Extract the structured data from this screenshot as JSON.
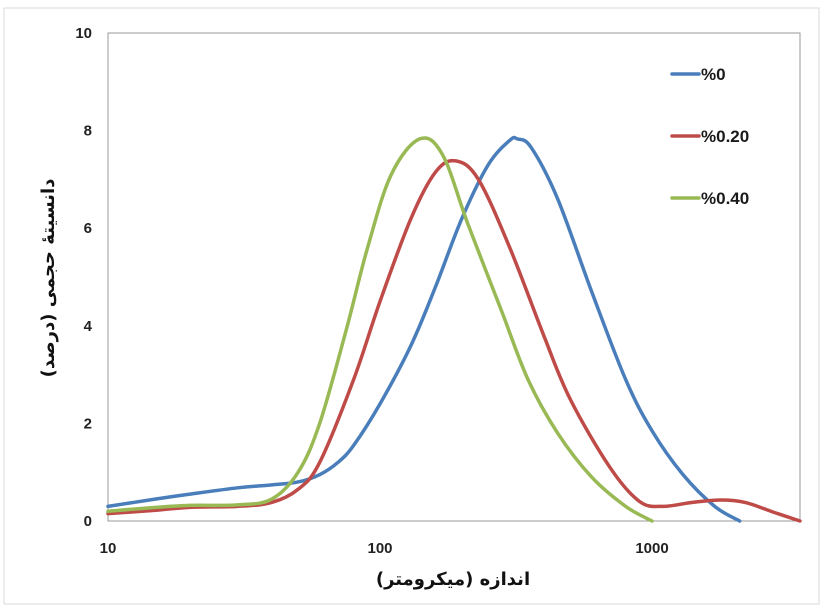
{
  "chart_data": {
    "type": "line",
    "xlabel": "اندازه (میکرومتر)",
    "ylabel": "دانسیتهٔ حجمی (درصد)",
    "xscale": "log",
    "xlim": [
      10,
      3500
    ],
    "ylim": [
      0,
      10
    ],
    "xticks": [
      10,
      100,
      1000
    ],
    "xtick_labels": [
      "10",
      "100",
      "1000"
    ],
    "yticks": [
      0,
      2,
      4,
      6,
      8,
      10
    ],
    "ytick_labels": [
      "0",
      "2",
      "4",
      "6",
      "8",
      "10"
    ],
    "grid": false,
    "legend_position": "top-right",
    "series": [
      {
        "name": "%0",
        "color": "#4a7ebb",
        "points": [
          [
            10,
            0.3
          ],
          [
            15,
            0.45
          ],
          [
            20,
            0.55
          ],
          [
            30,
            0.68
          ],
          [
            40,
            0.74
          ],
          [
            50,
            0.8
          ],
          [
            60,
            0.95
          ],
          [
            70,
            1.2
          ],
          [
            80,
            1.55
          ],
          [
            100,
            2.4
          ],
          [
            130,
            3.6
          ],
          [
            160,
            4.8
          ],
          [
            200,
            6.2
          ],
          [
            250,
            7.3
          ],
          [
            300,
            7.8
          ],
          [
            320,
            7.83
          ],
          [
            360,
            7.65
          ],
          [
            450,
            6.6
          ],
          [
            600,
            4.7
          ],
          [
            800,
            2.9
          ],
          [
            1000,
            1.85
          ],
          [
            1300,
            0.95
          ],
          [
            1700,
            0.3
          ],
          [
            2100,
            0.0
          ]
        ]
      },
      {
        "name": "%0.20",
        "color": "#be4b48",
        "points": [
          [
            10,
            0.15
          ],
          [
            15,
            0.22
          ],
          [
            20,
            0.28
          ],
          [
            30,
            0.3
          ],
          [
            40,
            0.38
          ],
          [
            50,
            0.65
          ],
          [
            60,
            1.2
          ],
          [
            80,
            2.9
          ],
          [
            100,
            4.5
          ],
          [
            130,
            6.2
          ],
          [
            160,
            7.15
          ],
          [
            190,
            7.38
          ],
          [
            230,
            7.0
          ],
          [
            300,
            5.6
          ],
          [
            400,
            3.8
          ],
          [
            500,
            2.5
          ],
          [
            700,
            1.1
          ],
          [
            900,
            0.4
          ],
          [
            1100,
            0.3
          ],
          [
            1400,
            0.38
          ],
          [
            1800,
            0.43
          ],
          [
            2200,
            0.38
          ],
          [
            2800,
            0.18
          ],
          [
            3500,
            0.0
          ]
        ]
      },
      {
        "name": "%0.40",
        "color": "#98b954",
        "points": [
          [
            10,
            0.2
          ],
          [
            15,
            0.28
          ],
          [
            20,
            0.32
          ],
          [
            30,
            0.33
          ],
          [
            40,
            0.45
          ],
          [
            50,
            1.0
          ],
          [
            60,
            2.0
          ],
          [
            75,
            3.9
          ],
          [
            90,
            5.6
          ],
          [
            110,
            7.1
          ],
          [
            140,
            7.83
          ],
          [
            170,
            7.5
          ],
          [
            210,
            6.1
          ],
          [
            280,
            4.3
          ],
          [
            350,
            2.9
          ],
          [
            450,
            1.8
          ],
          [
            600,
            0.9
          ],
          [
            800,
            0.3
          ],
          [
            1000,
            0.0
          ]
        ]
      }
    ]
  }
}
